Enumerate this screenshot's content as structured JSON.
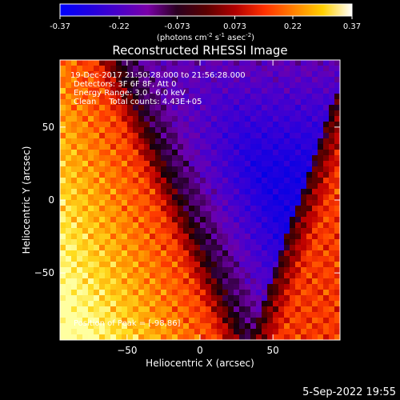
{
  "colorbar": {
    "ticks": [
      "-0.37",
      "-0.22",
      "-0.073",
      "0.073",
      "0.22",
      "0.37"
    ],
    "tick_values": [
      -0.37,
      -0.22,
      -0.073,
      0.073,
      0.22,
      0.37
    ],
    "unit_main": "(photons cm",
    "unit_exp1": "-2",
    "unit_mid": " s",
    "unit_exp2": "-1",
    "unit_mid2": " asec",
    "unit_exp3": "-2",
    "unit_end": ")",
    "colors": [
      "#0000ff",
      "#2000e0",
      "#4a00c8",
      "#7a00a8",
      "#2a0020",
      "#5a0000",
      "#b00000",
      "#ff3000",
      "#ff8000",
      "#ffd000",
      "#ffffff"
    ]
  },
  "chart_data": {
    "type": "heatmap",
    "title": "Reconstructed RHESSI Image",
    "xlabel": "Heliocentric X (arcsec)",
    "ylabel": "Heliocentric Y (arcsec)",
    "xlim": [
      -96,
      96
    ],
    "ylim": [
      -96,
      96
    ],
    "x_ticks": [
      -50,
      0,
      50
    ],
    "y_ticks": [
      50,
      0,
      -50
    ],
    "x_tick_labels": [
      "−50",
      "0",
      "50"
    ],
    "y_tick_labels": [
      "50",
      "0",
      "−50"
    ],
    "value_range": [
      -0.37,
      0.37
    ],
    "peak_position": [
      -98,
      86
    ],
    "annotations": {
      "time_range": "19-Dec-2017 21:50:28.000 to 21:56:28.000",
      "detectors": "Detectors: 3F 6F 8F, Att 0",
      "energy": "Energy Range: 3.0 - 6.0 keV",
      "clean": "Clean     Total counts: 4.43E+05",
      "peak": "Position of Peak = [-98,86]"
    }
  },
  "footer": {
    "date": "5-Sep-2022 19:55"
  }
}
